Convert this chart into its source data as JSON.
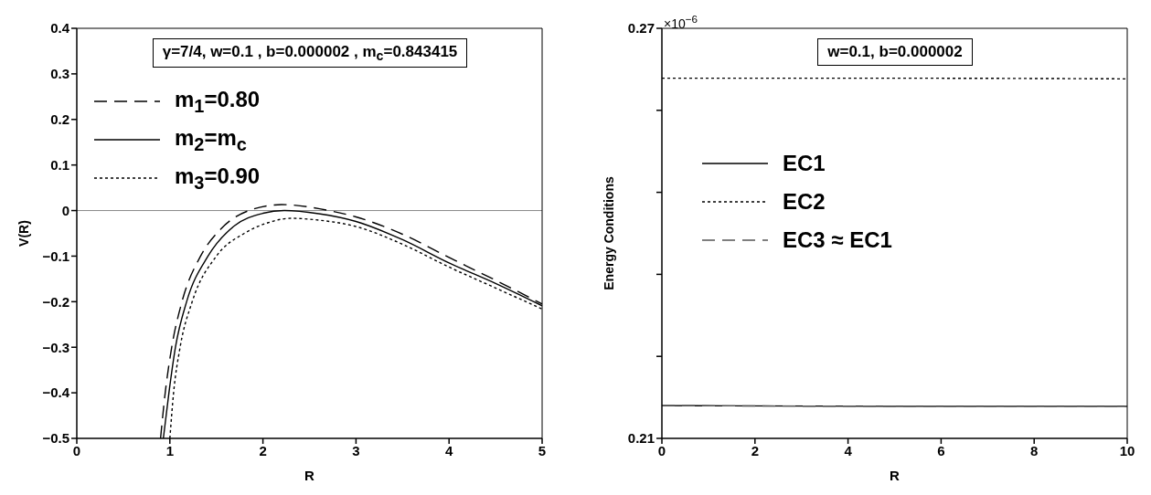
{
  "chart_data": [
    {
      "type": "line",
      "title": "γ=7/4, w=0.1 , b=0.000002 , m$_{c}$=0.843415",
      "xlabel": "R",
      "ylabel": "V(R)",
      "xlim": [
        0,
        5
      ],
      "xticks": [
        0,
        1,
        2,
        3,
        4,
        5
      ],
      "ylim": [
        -0.5,
        0.4
      ],
      "yticks": [
        {
          "value": -0.5,
          "label": "−0.5"
        },
        {
          "value": -0.4,
          "label": "−0.4"
        },
        {
          "value": -0.3,
          "label": "−0.3"
        },
        {
          "value": -0.2,
          "label": "−0.2"
        },
        {
          "value": -0.1,
          "label": "−0.1"
        },
        0,
        0.1,
        0.2,
        0.3,
        0.4
      ],
      "ref_lines": [
        {
          "axis": "y",
          "value": 0,
          "color": "#888888"
        }
      ],
      "legend": "top left",
      "grid": false,
      "marker": "none",
      "series": [
        {
          "name": "m$_{1}$=0.80",
          "color": "#000000",
          "line_style": "dashed",
          "x": [
            0.9,
            0.95,
            1.02,
            1.13,
            1.33,
            1.55,
            1.85,
            2.2,
            2.71,
            3.0,
            3.5,
            4.0,
            4.5,
            5.0
          ],
          "values": [
            -0.5,
            -0.4,
            -0.3,
            -0.2,
            -0.1,
            -0.04,
            0.0,
            0.013,
            0.0,
            -0.014,
            -0.052,
            -0.103,
            -0.153,
            -0.205
          ]
        },
        {
          "name": "m$_{2}$=m$_{c}$",
          "color": "#000000",
          "line_style": "solid",
          "x": [
            0.93,
            0.99,
            1.06,
            1.18,
            1.41,
            1.69,
            2.0,
            2.23,
            2.6,
            3.0,
            3.5,
            4.0,
            4.5,
            5.0
          ],
          "values": [
            -0.5,
            -0.4,
            -0.3,
            -0.2,
            -0.1,
            -0.034,
            -0.006,
            0.0,
            -0.007,
            -0.024,
            -0.064,
            -0.115,
            -0.16,
            -0.209
          ]
        },
        {
          "name": "m$_{3}$=0.90",
          "color": "#000000",
          "line_style": "dotted",
          "x": [
            1.0,
            1.04,
            1.11,
            1.24,
            1.5,
            1.8,
            2.05,
            2.3,
            2.6,
            3.0,
            3.5,
            4.0,
            4.5,
            5.0
          ],
          "values": [
            -0.5,
            -0.4,
            -0.3,
            -0.2,
            -0.1,
            -0.05,
            -0.027,
            -0.017,
            -0.021,
            -0.035,
            -0.074,
            -0.124,
            -0.17,
            -0.216
          ]
        }
      ]
    },
    {
      "type": "line",
      "title": "w=0.1, b=0.000002",
      "xlabel": "R",
      "ylabel": "Energy Conditions",
      "annotations": [
        "×10$^{−6}$"
      ],
      "xlim": [
        0,
        10
      ],
      "xticks": [
        0,
        2,
        4,
        6,
        8,
        10
      ],
      "ylim": [
        0.21,
        0.27
      ],
      "yticks": [
        0.21,
        {
          "value": 0.222,
          "label": null
        },
        {
          "value": 0.234,
          "label": null
        },
        {
          "value": 0.246,
          "label": null
        },
        {
          "value": 0.258,
          "label": null
        },
        0.27
      ],
      "legend": "left",
      "grid": false,
      "marker": "none",
      "series": [
        {
          "name": "EC1",
          "color": "#000000",
          "line_style": "solid",
          "x": [
            0,
            5,
            10
          ],
          "values": [
            0.2148,
            0.2147,
            0.2147
          ]
        },
        {
          "name": "EC2",
          "color": "#000000",
          "line_style": "dotted",
          "x": [
            0,
            5,
            10
          ],
          "values": [
            0.2627,
            0.2627,
            0.2626
          ]
        },
        {
          "name": "EC3 ≈ EC1",
          "color": "#555555",
          "line_style": "dashed",
          "x": [
            0,
            5,
            10
          ],
          "values": [
            0.2148,
            0.2147,
            0.2147
          ]
        }
      ]
    }
  ]
}
